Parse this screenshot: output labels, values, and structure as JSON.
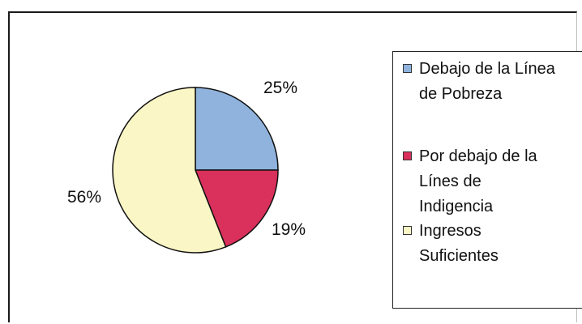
{
  "chart_data": {
    "type": "pie",
    "slices": [
      {
        "label": "Debajo de la Línea de Pobreza",
        "value": 25,
        "value_label": "25%",
        "color": "#8fb3dd"
      },
      {
        "label": "Por debajo de la Línes de Indigencia",
        "value": 19,
        "value_label": "19%",
        "color": "#d9305c"
      },
      {
        "label": "Ingresos Suficientes",
        "value": 56,
        "value_label": "56%",
        "color": "#fbf6c5"
      }
    ],
    "start_angle": "12 o'clock",
    "direction": "clockwise",
    "legend_position": "right",
    "title": ""
  },
  "legend": {
    "entries": [
      {
        "line1": "Debajo de la Línea",
        "line2": "de Pobreza",
        "line3": ""
      },
      {
        "line1": "Por debajo de la",
        "line2": "Línes de",
        "line3": "Indigencia"
      },
      {
        "line1": "Ingresos",
        "line2": "Suficientes",
        "line3": ""
      }
    ]
  }
}
